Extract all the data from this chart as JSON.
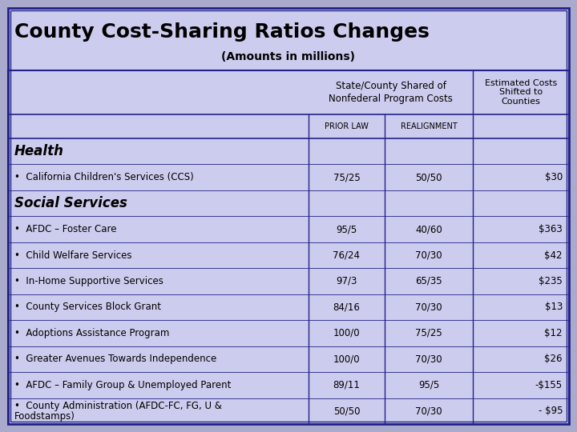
{
  "title": "County Cost-Sharing Ratios Changes",
  "subtitle": "(Amounts in millions)",
  "col_header_main": "State/County Shared of\nNonfederal Program Costs",
  "col_header_last": "Estimated Costs\nShifted to\nCounties",
  "col_sub1": "PRIOR LAW",
  "col_sub2": "REALIGNMENT",
  "bg_outer": "#aaaacc",
  "bg_inner": "#ccccee",
  "border_color": "#222288",
  "rows": [
    {
      "label": "Health",
      "type": "header",
      "prior": "",
      "realign": "",
      "est": ""
    },
    {
      "label": "•  California Children's Services (CCS)",
      "type": "item",
      "prior": "75/25",
      "realign": "50/50",
      "est": "$30"
    },
    {
      "label": "Social Services",
      "type": "header",
      "prior": "",
      "realign": "",
      "est": ""
    },
    {
      "label": "•  AFDC – Foster Care",
      "type": "item",
      "prior": "95/5",
      "realign": "40/60",
      "est": "$363"
    },
    {
      "label": "•  Child Welfare Services",
      "type": "item",
      "prior": "76/24",
      "realign": "70/30",
      "est": "$42"
    },
    {
      "label": "•  In-Home Supportive Services",
      "type": "item",
      "prior": "97/3",
      "realign": "65/35",
      "est": "$235"
    },
    {
      "label": "•  County Services Block Grant",
      "type": "item",
      "prior": "84/16",
      "realign": "70/30",
      "est": "$13"
    },
    {
      "label": "•  Adoptions Assistance Program",
      "type": "item",
      "prior": "100/0",
      "realign": "75/25",
      "est": "$12"
    },
    {
      "label": "•  Greater Avenues Towards Independence",
      "type": "item",
      "prior": "100/0",
      "realign": "70/30",
      "est": "$26"
    },
    {
      "label": "•  AFDC – Family Group & Unemployed Parent",
      "type": "item",
      "prior": "89/11",
      "realign": "95/5",
      "est": "-$155"
    },
    {
      "label": "•  County Administration (AFDC-FC, FG, U &\n   Foodstamps)",
      "type": "item_multi",
      "prior": "50/50",
      "realign": "70/30",
      "est": "- $95"
    }
  ],
  "title_fontsize": 18,
  "subtitle_fontsize": 10,
  "col_header_fontsize": 8.5,
  "sub_header_fontsize": 7,
  "section_fontsize": 12,
  "body_fontsize": 8.5
}
